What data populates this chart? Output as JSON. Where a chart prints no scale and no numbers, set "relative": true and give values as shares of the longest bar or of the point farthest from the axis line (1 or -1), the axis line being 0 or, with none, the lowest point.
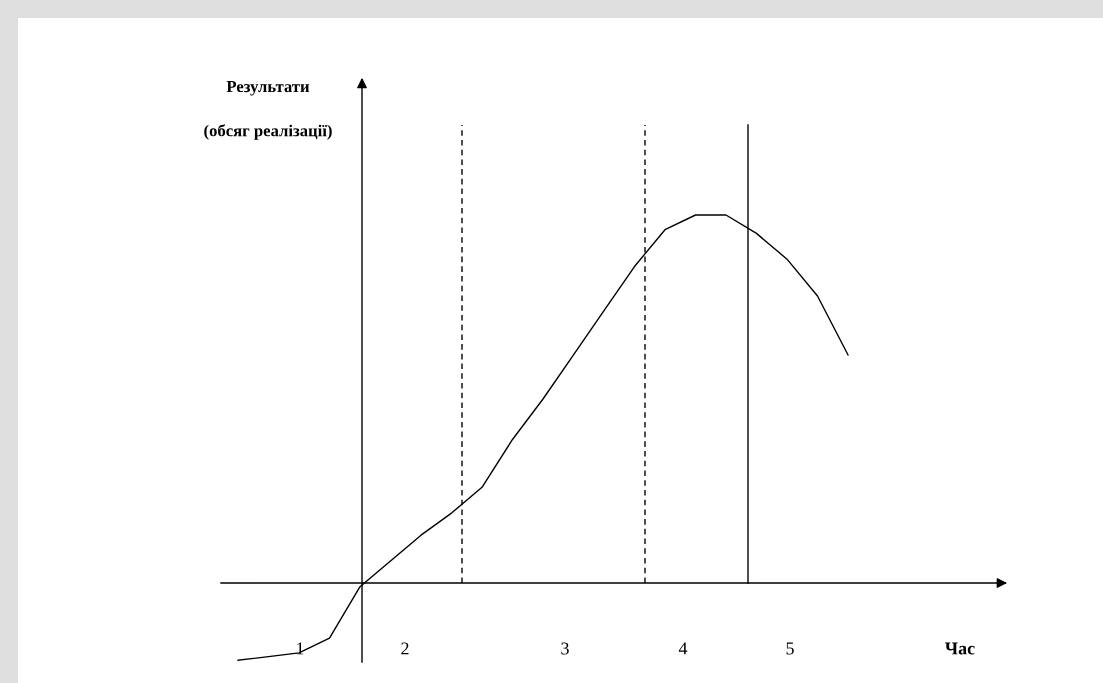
{
  "chart_data": {
    "type": "line",
    "relative": true,
    "xlabel": "Час",
    "ylabel": "Результати\n(обсяг реалізації)",
    "categories": [
      null,
      null,
      null,
      null,
      null,
      null,
      null,
      null,
      null,
      null,
      null,
      null,
      null,
      null,
      null,
      null,
      null,
      null,
      null,
      null,
      null
    ],
    "series": [
      {
        "color": "#000000",
        "values": [
          -0.21,
          -0.2,
          -0.19,
          -0.15,
          -0.01,
          0.06,
          0.13,
          0.19,
          0.26,
          0.39,
          0.5,
          0.62,
          0.74,
          0.86,
          0.96,
          1.0,
          1.0,
          0.95,
          0.88,
          0.78,
          0.62
        ]
      }
    ],
    "annotations": [
      "1",
      "2",
      "3",
      "4",
      "5"
    ],
    "marker": "none",
    "line_style": "solid",
    "legend": false
  }
}
